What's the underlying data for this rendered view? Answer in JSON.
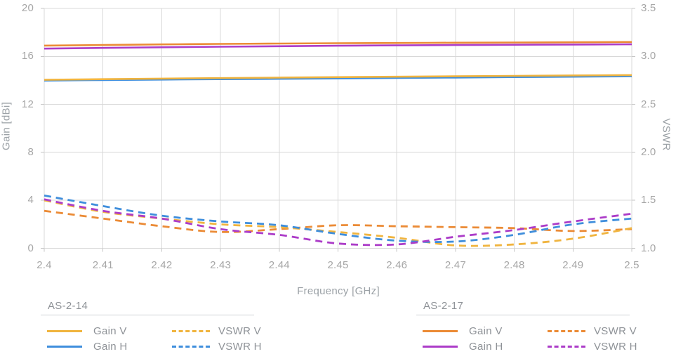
{
  "chart_data": {
    "type": "line",
    "title": "",
    "xlabel": "Frequency [GHz]",
    "x_range": [
      2.4,
      2.5
    ],
    "x": [
      2.4,
      2.41,
      2.42,
      2.43,
      2.44,
      2.45,
      2.46,
      2.47,
      2.48,
      2.49,
      2.5
    ],
    "x_tick_labels": [
      "2.4",
      "2.41",
      "2.42",
      "2.43",
      "2.44",
      "2.45",
      "2.46",
      "2.47",
      "2.48",
      "2.49",
      "2.5"
    ],
    "grid": true,
    "left_axis": {
      "title": "Gain [dBi]",
      "range": [
        0,
        20
      ],
      "tick_values": [
        20,
        16,
        12,
        8,
        4,
        0
      ],
      "tick_labels": [
        "20",
        "16",
        "12",
        "8",
        "4",
        "0"
      ]
    },
    "right_axis": {
      "title": "VSWR",
      "range": [
        1.0,
        3.5
      ],
      "tick_values": [
        3.5,
        3.0,
        2.5,
        2.0,
        1.5,
        1.0
      ],
      "tick_labels": [
        "3.5",
        "3.0",
        "2.5",
        "2.0",
        "1.5",
        "1.0"
      ]
    },
    "series": [
      {
        "name": "AS-2-14 Gain H",
        "group": "AS-2-14",
        "label": "Gain H",
        "axis": "left",
        "style": "solid",
        "color": "#3F8EDC",
        "values": [
          13.98,
          14.03,
          14.07,
          14.1,
          14.13,
          14.16,
          14.2,
          14.24,
          14.28,
          14.31,
          14.34
        ]
      },
      {
        "name": "AS-2-14 Gain V",
        "group": "AS-2-14",
        "label": "Gain V",
        "axis": "left",
        "style": "solid",
        "color": "#F0B43F",
        "values": [
          14.05,
          14.1,
          14.15,
          14.19,
          14.23,
          14.27,
          14.31,
          14.34,
          14.38,
          14.41,
          14.44
        ]
      },
      {
        "name": "AS-2-17 Gain H",
        "group": "AS-2-17",
        "label": "Gain H",
        "axis": "left",
        "style": "solid",
        "color": "#AC3CC8",
        "values": [
          16.65,
          16.71,
          16.76,
          16.81,
          16.85,
          16.89,
          16.92,
          16.95,
          16.97,
          16.99,
          17.01
        ]
      },
      {
        "name": "AS-2-17 Gain V",
        "group": "AS-2-17",
        "label": "Gain V",
        "axis": "left",
        "style": "solid",
        "color": "#EB8B36",
        "values": [
          16.9,
          16.95,
          17.0,
          17.04,
          17.07,
          17.1,
          17.12,
          17.14,
          17.16,
          17.18,
          17.2
        ]
      },
      {
        "name": "AS-2-17 VSWR V",
        "group": "AS-2-17",
        "label": "VSWR V",
        "axis": "right",
        "style": "dashed",
        "color": "#EB8B36",
        "values": [
          1.39,
          1.31,
          1.23,
          1.17,
          1.2,
          1.24,
          1.23,
          1.22,
          1.21,
          1.18,
          1.2
        ]
      },
      {
        "name": "AS-2-14 VSWR V",
        "group": "AS-2-14",
        "label": "VSWR V",
        "axis": "right",
        "style": "dashed",
        "color": "#F0B43F",
        "values": [
          1.5,
          1.38,
          1.31,
          1.25,
          1.22,
          1.17,
          1.11,
          1.03,
          1.04,
          1.1,
          1.21
        ]
      },
      {
        "name": "AS-2-14 VSWR H",
        "group": "AS-2-14",
        "label": "VSWR H",
        "axis": "right",
        "style": "dashed",
        "color": "#3F8EDC",
        "values": [
          1.55,
          1.44,
          1.34,
          1.28,
          1.24,
          1.15,
          1.08,
          1.07,
          1.14,
          1.25,
          1.31
        ]
      },
      {
        "name": "AS-2-17 VSWR H",
        "group": "AS-2-17",
        "label": "VSWR H",
        "axis": "right",
        "style": "dashed",
        "color": "#AC3CC8",
        "values": [
          1.51,
          1.39,
          1.31,
          1.2,
          1.14,
          1.05,
          1.04,
          1.12,
          1.19,
          1.28,
          1.36
        ]
      }
    ]
  },
  "legends": [
    {
      "title": "AS-2-14",
      "entries": [
        {
          "label": "Gain V",
          "style": "solid",
          "color": "#F0B43F"
        },
        {
          "label": "VSWR V",
          "style": "dashed",
          "color": "#F0B43F"
        },
        {
          "label": "Gain H",
          "style": "solid",
          "color": "#3F8EDC"
        },
        {
          "label": "VSWR H",
          "style": "dashed",
          "color": "#3F8EDC"
        }
      ]
    },
    {
      "title": "AS-2-17",
      "entries": [
        {
          "label": "Gain V",
          "style": "solid",
          "color": "#EB8B36"
        },
        {
          "label": "VSWR V",
          "style": "dashed",
          "color": "#EB8B36"
        },
        {
          "label": "Gain H",
          "style": "solid",
          "color": "#AC3CC8"
        },
        {
          "label": "VSWR H",
          "style": "dashed",
          "color": "#AC3CC8"
        }
      ]
    }
  ],
  "colors": {
    "grid": "#d8d8d8",
    "axis_line": "#c6c6c6",
    "tick_text": "#a6a6a6",
    "label_text": "#9ba1a6",
    "background": "#ffffff"
  }
}
